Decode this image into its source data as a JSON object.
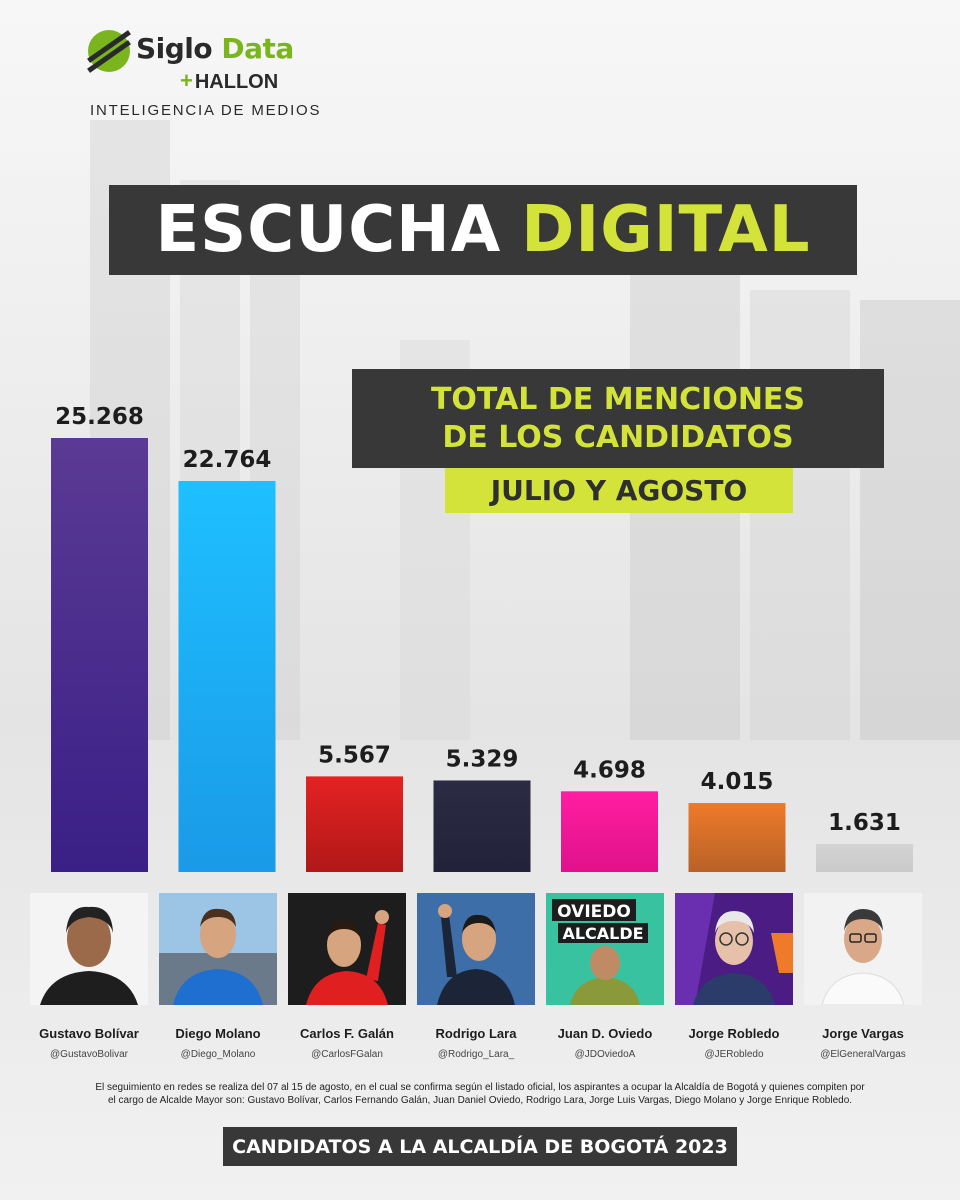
{
  "brand": {
    "name_part1": "Siglo",
    "name_part2": "Data",
    "partner_plus": "+",
    "partner": "HALLON",
    "tagline": "INTELIGENCIA DE MEDIOS",
    "accent_color": "#d4e33a",
    "logo_green": "#7ab51d"
  },
  "headline": {
    "word1": "ESCUCHA",
    "word2": "DIGITAL"
  },
  "subtitle": {
    "line1": "TOTAL DE MENCIONES",
    "line2": "DE LOS CANDIDATOS"
  },
  "period": "JULIO Y AGOSTO",
  "chart_data": {
    "type": "bar",
    "title": "TOTAL DE MENCIONES DE LOS CANDIDATOS",
    "subtitle": "JULIO Y AGOSTO",
    "categories": [
      "Gustavo Bolívar",
      "Diego Molano",
      "Carlos F. Galán",
      "Rodrigo Lara",
      "Juan D. Oviedo",
      "Jorge Robledo",
      "Jorge Vargas"
    ],
    "values": [
      25268,
      22764,
      5567,
      5329,
      4698,
      4015,
      1631
    ],
    "value_labels": [
      "25.268",
      "22.764",
      "5.567",
      "5.329",
      "4.698",
      "4.015",
      "1.631"
    ],
    "colors": [
      [
        "#5a3a94",
        "#3a1f86"
      ],
      [
        "#1ec0ff",
        "#1a9ae8"
      ],
      [
        "#e52222",
        "#b01818"
      ],
      [
        "#2b2b44",
        "#22223a"
      ],
      [
        "#ff1ea0",
        "#e0118a"
      ],
      [
        "#ef7a2a",
        "#b86228"
      ],
      [
        "#d3d3d3",
        "#cacaca"
      ]
    ],
    "ylim": [
      0,
      25268
    ],
    "grid": false,
    "legend": "none",
    "xlabel": "",
    "ylabel": ""
  },
  "candidates": [
    {
      "name": "Gustavo Bolívar",
      "handle": "@GustavoBolivar"
    },
    {
      "name": "Diego Molano",
      "handle": "@Diego_Molano"
    },
    {
      "name": "Carlos F. Galán",
      "handle": "@CarlosFGalan"
    },
    {
      "name": "Rodrigo Lara",
      "handle": "@Rodrigo_Lara_"
    },
    {
      "name": "Juan D. Oviedo",
      "handle": "@JDOviedoA"
    },
    {
      "name": "Jorge Robledo",
      "handle": "@JERobledo"
    },
    {
      "name": "Jorge Vargas",
      "handle": "@ElGeneralVargas"
    }
  ],
  "poster_text": {
    "line1": "OVIEDO",
    "line2": "ALCALDE"
  },
  "footnote": {
    "line1": "El seguimiento en redes se realiza del 07 al 15 de agosto, en el cual se confirma según el listado oficial, los aspirantes  a ocupar la Alcaldía de Bogotá y quienes compiten por",
    "line2": "el cargo de Alcalde Mayor son: Gustavo Bolívar, Carlos Fernando Galán, Juan Daniel Oviedo, Rodrigo Lara, Jorge Luis Vargas, Diego Molano y Jorge  Enrique Robledo."
  },
  "footer": "CANDIDATOS A LA ALCALDÍA DE BOGOTÁ 2023"
}
